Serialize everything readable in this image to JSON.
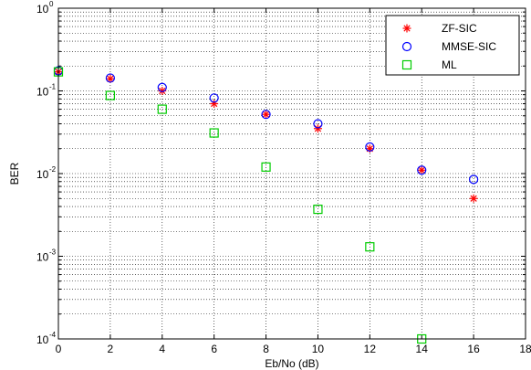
{
  "chart_data": {
    "type": "scatter",
    "title": "",
    "xlabel": "Eb/No (dB)",
    "ylabel": "BER",
    "xlim": [
      0,
      18
    ],
    "ylim": [
      0.0001,
      1
    ],
    "yscale": "log",
    "grid": true,
    "legend_position": "top-right",
    "x_ticks": [
      "0",
      "2",
      "4",
      "6",
      "8",
      "10",
      "12",
      "14",
      "16",
      "18"
    ],
    "y_ticks": [
      {
        "base": "10",
        "exp": "-4",
        "value": 0.0001
      },
      {
        "base": "10",
        "exp": "-3",
        "value": 0.001
      },
      {
        "base": "10",
        "exp": "-2",
        "value": 0.01
      },
      {
        "base": "10",
        "exp": "-1",
        "value": 0.1
      },
      {
        "base": "10",
        "exp": "0",
        "value": 1
      }
    ],
    "series": [
      {
        "name": "ZF-SIC",
        "marker": "star",
        "color": "#ff0000",
        "x": [
          0,
          2,
          4,
          6,
          8,
          10,
          12,
          14,
          16
        ],
        "y": [
          0.17,
          0.14,
          0.1,
          0.07,
          0.052,
          0.035,
          0.02,
          0.011,
          0.005
        ]
      },
      {
        "name": "MMSE-SIC",
        "marker": "circle",
        "color": "#0000ff",
        "x": [
          0,
          2,
          4,
          6,
          8,
          10,
          12,
          14,
          16
        ],
        "y": [
          0.175,
          0.143,
          0.11,
          0.082,
          0.052,
          0.04,
          0.021,
          0.011,
          0.0085
        ]
      },
      {
        "name": "ML",
        "marker": "square",
        "color": "#00cc00",
        "x": [
          0,
          2,
          4,
          6,
          8,
          10,
          12,
          14
        ],
        "y": [
          0.17,
          0.088,
          0.06,
          0.031,
          0.012,
          0.0037,
          0.0013,
          0.0001
        ]
      }
    ]
  }
}
